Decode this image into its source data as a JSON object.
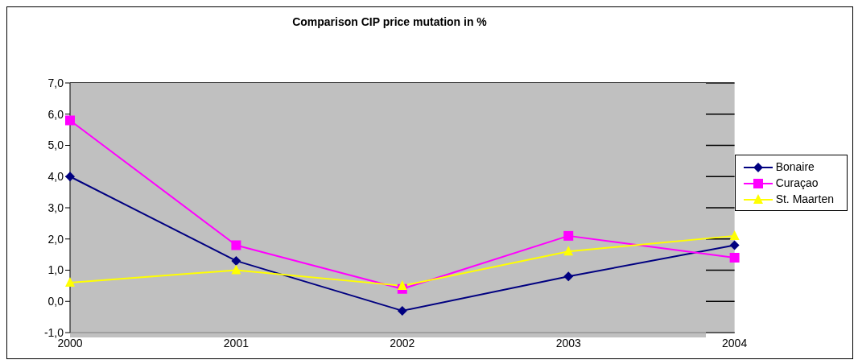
{
  "chart_data": {
    "type": "line",
    "title": "Comparison CIP price mutation in %",
    "categories": [
      "2000",
      "2001",
      "2002",
      "2003",
      "2004"
    ],
    "series": [
      {
        "name": "Bonaire",
        "color": "#000080",
        "marker": "diamond",
        "values": [
          4.0,
          1.3,
          -0.3,
          0.8,
          1.8
        ]
      },
      {
        "name": "Curaçao",
        "color": "#ff00ff",
        "marker": "square",
        "values": [
          5.8,
          1.8,
          0.4,
          2.1,
          1.4
        ]
      },
      {
        "name": "St. Maarten",
        "color": "#ffff00",
        "marker": "triangle",
        "values": [
          0.6,
          1.0,
          0.5,
          1.6,
          2.1
        ]
      }
    ],
    "ylim": [
      -1,
      7
    ],
    "yticks": [
      {
        "value": -1,
        "label": "-1,0"
      },
      {
        "value": 0,
        "label": "0,0"
      },
      {
        "value": 1,
        "label": "1,0"
      },
      {
        "value": 2,
        "label": "2,0"
      },
      {
        "value": 3,
        "label": "3,0"
      },
      {
        "value": 4,
        "label": "4,0"
      },
      {
        "value": 5,
        "label": "5,0"
      },
      {
        "value": 6,
        "label": "6,0"
      },
      {
        "value": 7,
        "label": "7,0"
      }
    ],
    "grid": "y",
    "legend": "right"
  }
}
